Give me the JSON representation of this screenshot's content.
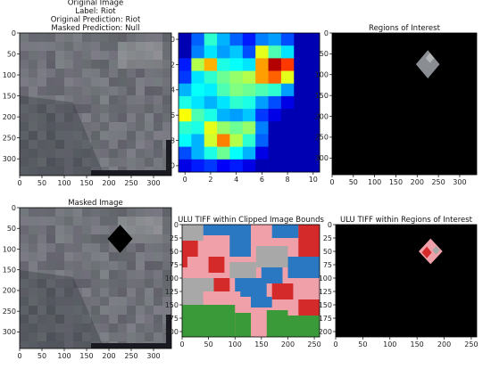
{
  "figure": {
    "panels": [
      {
        "id": "original",
        "title_lines": [
          "Original Image",
          "Label: Riot",
          "Original Prediction: Riot",
          "Masked Prediction: Null"
        ],
        "kind": "satellite",
        "xlim": [
          0,
          340
        ],
        "ylim": [
          340,
          0
        ],
        "xticks": [
          0,
          50,
          100,
          150,
          200,
          250,
          300
        ],
        "yticks": [
          0,
          50,
          100,
          150,
          200,
          250,
          300
        ]
      },
      {
        "id": "heatmap",
        "title_lines": [],
        "kind": "heatmap",
        "xlim": [
          0,
          10.5
        ],
        "ylim": [
          10.5,
          0
        ],
        "xticks": [
          0,
          2,
          4,
          6,
          8,
          10
        ],
        "yticks": [
          0,
          2,
          4,
          6,
          8,
          10
        ]
      },
      {
        "id": "roi",
        "title_lines": [
          "Regions of Interest"
        ],
        "kind": "roi",
        "xlim": [
          0,
          340
        ],
        "ylim": [
          340,
          0
        ],
        "xticks": [
          0,
          50,
          100,
          150,
          200,
          250,
          300
        ],
        "yticks": [
          0,
          50,
          100,
          150,
          200,
          250,
          300
        ]
      },
      {
        "id": "masked",
        "title_lines": [
          "Masked Image"
        ],
        "kind": "masked",
        "xlim": [
          0,
          340
        ],
        "ylim": [
          340,
          0
        ],
        "xticks": [
          0,
          50,
          100,
          150,
          200,
          250,
          300
        ],
        "yticks": [
          0,
          50,
          100,
          150,
          200,
          250,
          300
        ]
      },
      {
        "id": "ulu_clipped",
        "title_lines": [
          "ULU TIFF within Clipped Image Bounds"
        ],
        "kind": "landuse",
        "xlim": [
          0,
          260
        ],
        "ylim": [
          210,
          0
        ],
        "xticks": [
          0,
          50,
          100,
          150,
          200,
          250
        ],
        "yticks": [
          0,
          25,
          50,
          75,
          100,
          125,
          150,
          175,
          200
        ]
      },
      {
        "id": "ulu_roi",
        "title_lines": [
          "ULU TIFF within Regions of Interest"
        ],
        "kind": "landuse_roi",
        "xlim": [
          0,
          260
        ],
        "ylim": [
          210,
          0
        ],
        "xticks": [
          0,
          50,
          100,
          150,
          200,
          250
        ],
        "yticks": [
          0,
          25,
          50,
          75,
          100,
          125,
          150,
          175,
          200
        ]
      }
    ]
  },
  "chart_data": [
    {
      "type": "heatmap",
      "id": "activation-grid",
      "rows": 11,
      "cols": 11,
      "values": [
        [
          0.05,
          0.22,
          0.42,
          0.3,
          0.22,
          0.15,
          0.25,
          0.28,
          0.2,
          0.05,
          0.05
        ],
        [
          0.05,
          0.25,
          0.35,
          0.28,
          0.32,
          0.2,
          0.6,
          0.45,
          0.35,
          0.05,
          0.05
        ],
        [
          0.15,
          0.55,
          0.7,
          0.4,
          0.38,
          0.35,
          0.72,
          0.95,
          0.82,
          0.05,
          0.05
        ],
        [
          0.18,
          0.35,
          0.42,
          0.48,
          0.52,
          0.55,
          0.72,
          0.78,
          0.6,
          0.05,
          0.05
        ],
        [
          0.3,
          0.38,
          0.36,
          0.45,
          0.5,
          0.48,
          0.45,
          0.42,
          0.28,
          0.05,
          0.05
        ],
        [
          0.4,
          0.35,
          0.3,
          0.35,
          0.42,
          0.4,
          0.28,
          0.2,
          0.1,
          0.05,
          0.05
        ],
        [
          0.62,
          0.45,
          0.4,
          0.3,
          0.28,
          0.32,
          0.18,
          0.1,
          0.05,
          0.05,
          0.05
        ],
        [
          0.42,
          0.4,
          0.6,
          0.52,
          0.48,
          0.52,
          0.25,
          0.05,
          0.05,
          0.05,
          0.05
        ],
        [
          0.38,
          0.3,
          0.58,
          0.75,
          0.55,
          0.42,
          0.22,
          0.05,
          0.05,
          0.05,
          0.05
        ],
        [
          0.2,
          0.3,
          0.4,
          0.48,
          0.38,
          0.3,
          0.1,
          0.05,
          0.05,
          0.05,
          0.05
        ],
        [
          0.1,
          0.15,
          0.18,
          0.12,
          0.15,
          0.1,
          0.05,
          0.05,
          0.05,
          0.05,
          0.05
        ]
      ],
      "colormap": "jet"
    }
  ],
  "colors": {
    "satellite_base": "#6e7278",
    "satellite_dark": "#2f3338",
    "mask_fill": "#000000",
    "roi_background": "#000000",
    "roi_patch": "#8a8e92",
    "landuse_blue": "#2b78c2",
    "landuse_red": "#d42a2a",
    "landuse_pink": "#f0a0a8",
    "landuse_green": "#3a9a3a",
    "landuse_gray": "#a8a8a8"
  }
}
